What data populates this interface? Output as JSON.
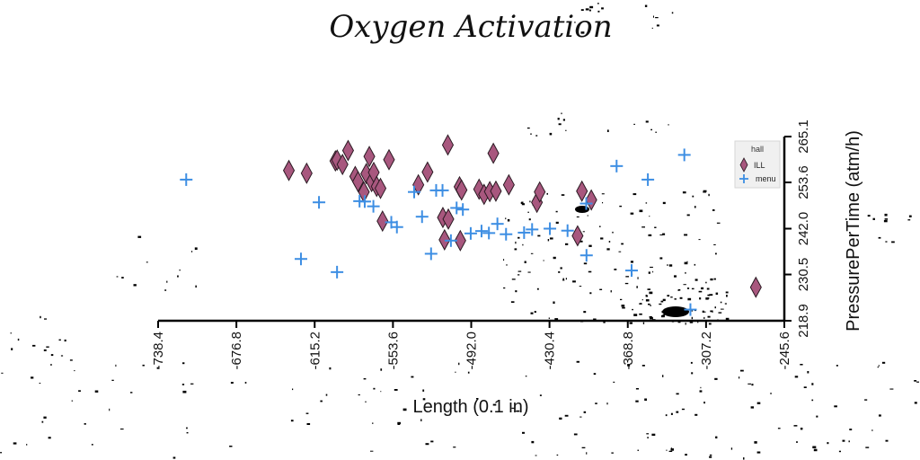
{
  "chart_data": {
    "type": "scatter",
    "title": "Oxygen Activation",
    "xlabel": "Length (0.1 in)",
    "ylabel": "PressurePerTime (atm/h)",
    "xlim": [
      -738.4,
      -245.6
    ],
    "ylim": [
      218.9,
      265.1
    ],
    "x_ticks": [
      "-738.4",
      "-676.8",
      "-615.2",
      "-553.6",
      "-492.0",
      "-430.4",
      "-368.8",
      "-307.2",
      "-245.6"
    ],
    "y_ticks": [
      "218.9",
      "230.5",
      "242.0",
      "253.6",
      "265.1"
    ],
    "x_axis_position": "bottom",
    "y_axis_position": "right",
    "grid": false,
    "legend": {
      "title": "hall",
      "position": "top-right"
    },
    "series": [
      {
        "name": "ILL",
        "marker": "diamond",
        "color": "#a8577e",
        "points": [
          [
            -635.5,
            256.6
          ],
          [
            -621.5,
            255.9
          ],
          [
            -598.9,
            259.0
          ],
          [
            -597.5,
            259.2
          ],
          [
            -593.3,
            258.1
          ],
          [
            -588.9,
            261.6
          ],
          [
            -583.3,
            255.1
          ],
          [
            -581.1,
            253.8
          ],
          [
            -576.5,
            251.2
          ],
          [
            -574.6,
            255.8
          ],
          [
            -572.2,
            260.1
          ],
          [
            -570.4,
            253.8
          ],
          [
            -568.7,
            256.1
          ],
          [
            -566.4,
            252.6
          ],
          [
            -563.4,
            252.1
          ],
          [
            -561.8,
            243.9
          ],
          [
            -556.7,
            259.3
          ],
          [
            -533.6,
            253.0
          ],
          [
            -526.4,
            256.2
          ],
          [
            -514.3,
            244.8
          ],
          [
            -513.0,
            239.2
          ],
          [
            -510.0,
            244.4
          ],
          [
            -510.4,
            263.0
          ],
          [
            -501.2,
            252.5
          ],
          [
            -500.6,
            239.0
          ],
          [
            -499.6,
            251.7
          ],
          [
            -485.8,
            251.9
          ],
          [
            -481.9,
            250.6
          ],
          [
            -477.4,
            251.3
          ],
          [
            -474.6,
            260.9
          ],
          [
            -472.6,
            251.4
          ],
          [
            -462.4,
            253.0
          ],
          [
            -440.3,
            248.6
          ],
          [
            -438.1,
            251.2
          ],
          [
            -408.3,
            240.2
          ],
          [
            -404.9,
            251.4
          ],
          [
            -397.5,
            249.2
          ],
          [
            -268.0,
            227.3
          ]
        ]
      },
      {
        "name": "menu",
        "marker": "plus",
        "color": "#3d8ee3",
        "points": [
          [
            -716.3,
            254.3
          ],
          [
            -626.0,
            234.4
          ],
          [
            -611.8,
            248.6
          ],
          [
            -597.6,
            231.1
          ],
          [
            -579.9,
            248.9
          ],
          [
            -575.8,
            248.8
          ],
          [
            -569.0,
            247.6
          ],
          [
            -554.9,
            243.6
          ],
          [
            -550.5,
            242.4
          ],
          [
            -536.9,
            251.2
          ],
          [
            -530.7,
            245.0
          ],
          [
            -523.6,
            235.7
          ],
          [
            -519.6,
            251.6
          ],
          [
            -514.6,
            251.6
          ],
          [
            -508.0,
            239.0
          ],
          [
            -503.5,
            247.2
          ],
          [
            -498.6,
            246.8
          ],
          [
            -492.4,
            240.8
          ],
          [
            -483.9,
            241.4
          ],
          [
            -478.1,
            240.9
          ],
          [
            -471.4,
            243.2
          ],
          [
            -464.6,
            240.6
          ],
          [
            -450.4,
            241.0
          ],
          [
            -444.1,
            241.8
          ],
          [
            -430.1,
            242.0
          ],
          [
            -416.2,
            241.5
          ],
          [
            -401.3,
            235.3
          ],
          [
            -401.5,
            248.3
          ],
          [
            -377.6,
            257.7
          ],
          [
            -365.8,
            231.5
          ],
          [
            -353.0,
            254.3
          ],
          [
            -324.3,
            260.5
          ],
          [
            -319.5,
            221.7
          ]
        ]
      }
    ]
  }
}
